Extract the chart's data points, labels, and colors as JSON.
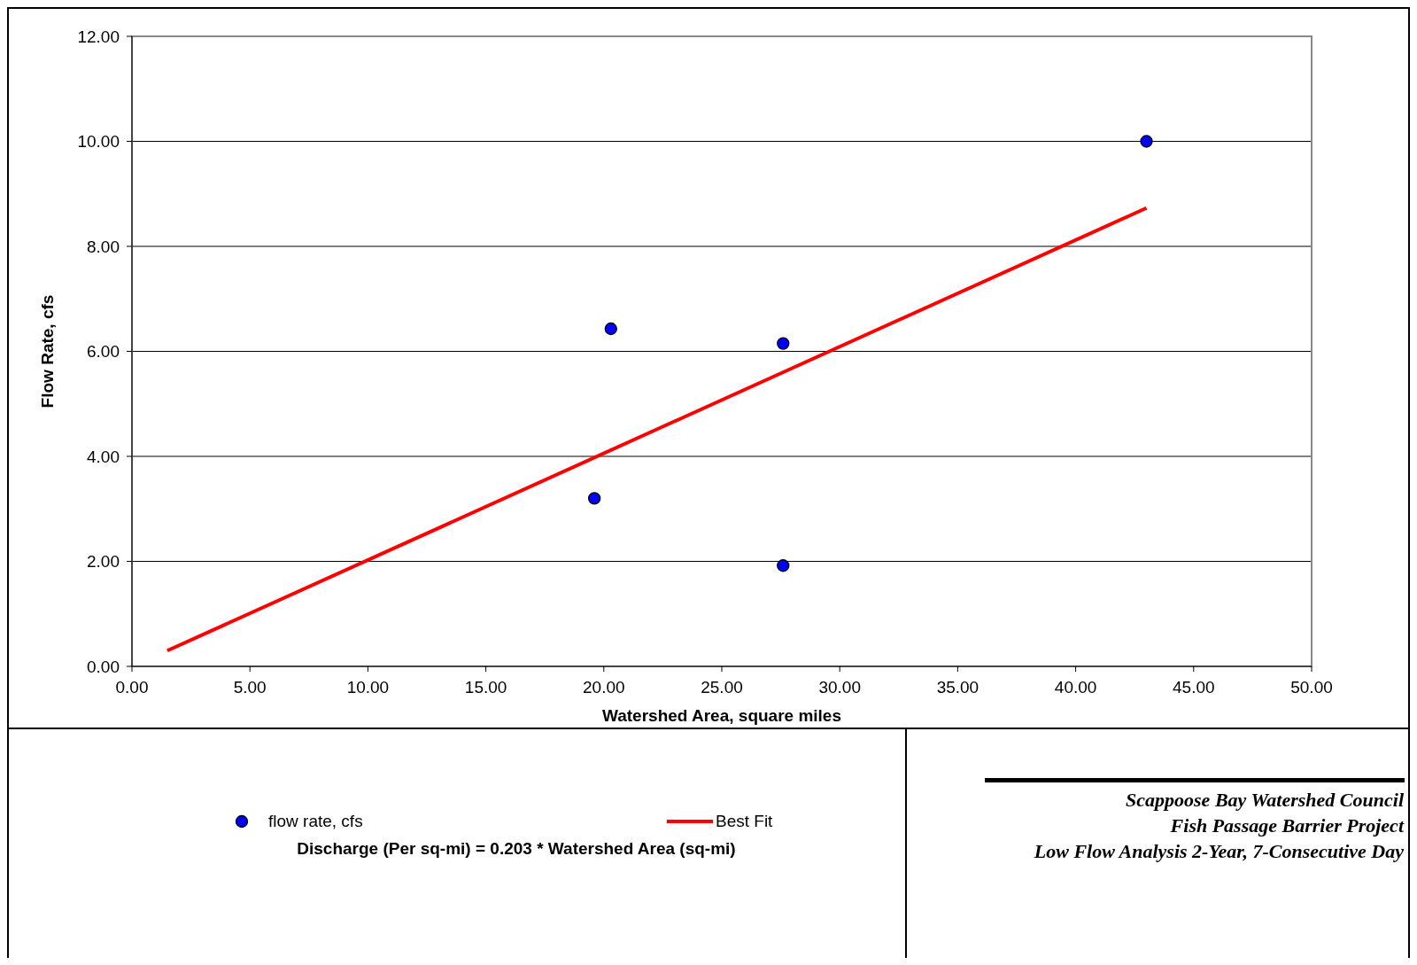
{
  "chart_data": {
    "type": "scatter",
    "title": "Scappoose Bay Watershed Council",
    "subtitle": "Fish Passage Barrier Project",
    "xlabel": "Watershed Area, square miles",
    "ylabel": "Flow Rate, cfs",
    "annotations": [
      "Low Flow Analysis 2-Year, 7-Consecutive Day",
      "Discharge (Per sq-mi) = 0.203 * Watershed Area (sq-mi)"
    ],
    "x": [
      19.6,
      20.3,
      27.6,
      27.6,
      43.0
    ],
    "series": [
      {
        "name": "flow rate, cfs",
        "color": "#0000ff",
        "values": [
          3.2,
          6.43,
          6.15,
          1.92,
          10.0
        ],
        "marker": "circle"
      },
      {
        "name": "Best Fit",
        "type": "line",
        "color": "#ff0000",
        "x": [
          1.5,
          43.0
        ],
        "values": [
          0.3,
          8.73
        ],
        "marker": "none",
        "line_style": "solid"
      }
    ],
    "xlim": [
      0,
      50
    ],
    "ylim": [
      0,
      12
    ],
    "xticks": [
      {
        "value": 0,
        "label": "0.00"
      },
      {
        "value": 5,
        "label": "5.00"
      },
      {
        "value": 10,
        "label": "10.00"
      },
      {
        "value": 15,
        "label": "15.00"
      },
      {
        "value": 20,
        "label": "20.00"
      },
      {
        "value": 25,
        "label": "25.00"
      },
      {
        "value": 30,
        "label": "30.00"
      },
      {
        "value": 35,
        "label": "35.00"
      },
      {
        "value": 40,
        "label": "40.00"
      },
      {
        "value": 45,
        "label": "45.00"
      },
      {
        "value": 50,
        "label": "50.00"
      }
    ],
    "yticks": [
      {
        "value": 0,
        "label": "0.00"
      },
      {
        "value": 2,
        "label": "2.00"
      },
      {
        "value": 4,
        "label": "4.00"
      },
      {
        "value": 6,
        "label": "6.00"
      },
      {
        "value": 8,
        "label": "8.00"
      },
      {
        "value": 10,
        "label": "10.00"
      },
      {
        "value": 12,
        "label": "12.00"
      }
    ],
    "grid": "y",
    "legend": "bottom"
  }
}
